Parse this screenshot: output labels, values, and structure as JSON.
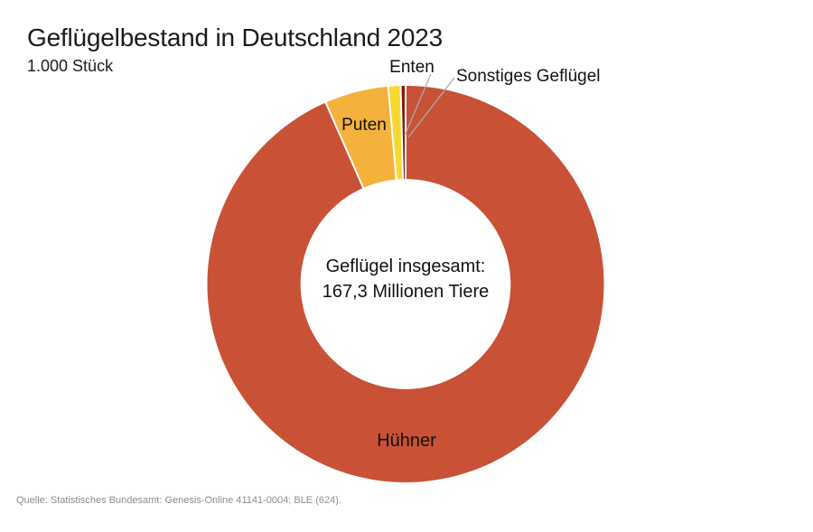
{
  "header": {
    "title": "Geflügelbestand in Deutschland 2023",
    "subtitle": "1.000 Stück"
  },
  "footer": {
    "source": "Quelle: Statistisches Bundesamt: Genesis-Online 41141-0004; BLE (624)."
  },
  "chart_data": {
    "type": "pie",
    "variant": "donut",
    "title": "Geflügelbestand in Deutschland 2023",
    "unit_label": "1.000 Stück",
    "total_millions": 167.3,
    "center_label": {
      "line1": "Geflügel insgesamt:",
      "line2": "167,3 Millionen Tiere"
    },
    "start_angle_deg": 0,
    "direction": "clockwise",
    "inner_radius_ratio": 0.53,
    "legend_position": "none",
    "gridlines": false,
    "series": [
      {
        "label": "Hühner",
        "percent_est": 93.4,
        "value_est_thousand": 156300,
        "color": "#C85136",
        "label_placement": "inside"
      },
      {
        "label": "Puten",
        "percent_est": 5.2,
        "value_est_thousand": 8700,
        "color": "#F4B23C",
        "label_placement": "inside"
      },
      {
        "label": "Enten",
        "percent_est": 1.0,
        "value_est_thousand": 1700,
        "color": "#F6D92E",
        "label_placement": "outside-leader"
      },
      {
        "label": "Sonstiges Geflügel",
        "percent_est": 0.4,
        "value_est_thousand": 600,
        "color": "#8B190F",
        "label_placement": "outside-leader"
      }
    ],
    "colors": {
      "huhner": "#C85136",
      "puten": "#F4B23C",
      "enten": "#F6D92E",
      "sonstiges": "#8B190F",
      "leader_line": "#ABABAB",
      "separator": "#FFFFFF"
    }
  }
}
